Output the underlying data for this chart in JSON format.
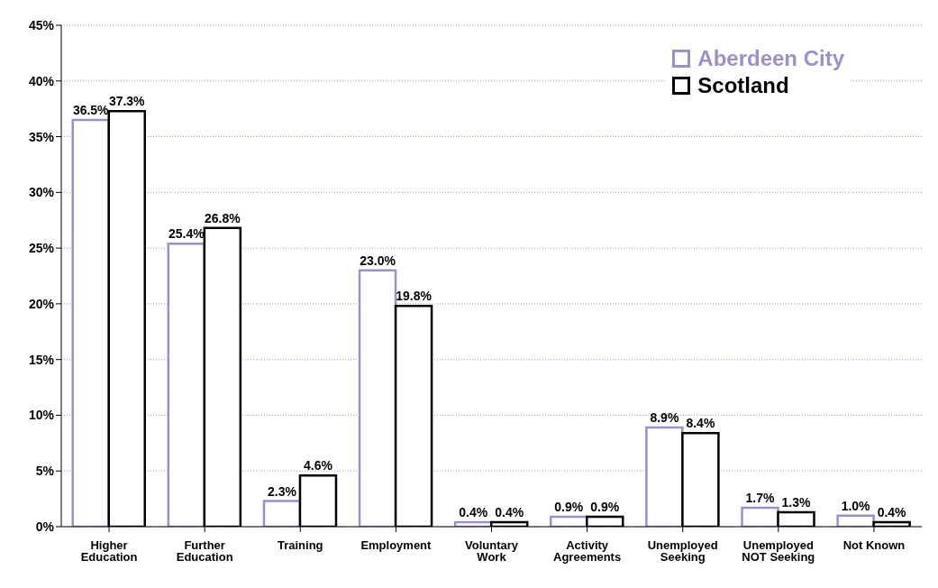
{
  "chart_data": {
    "type": "bar",
    "categories": [
      "Higher Education",
      "Further Education",
      "Training",
      "Employment",
      "Voluntary Work",
      "Activity Agreements",
      "Unemployed Seeking",
      "Unemployed NOT Seeking",
      "Not Known"
    ],
    "series": [
      {
        "name": "Aberdeen City",
        "color": "#9f8fc8",
        "values": [
          36.5,
          25.4,
          2.3,
          23.0,
          0.4,
          0.9,
          8.9,
          1.7,
          1.0
        ],
        "value_labels": [
          "36.5%",
          "25.4%",
          "2.3%",
          "23.0%",
          "0.4%",
          "0.9%",
          "8.9%",
          "1.7%",
          "1.0%"
        ]
      },
      {
        "name": "Scotland",
        "color": "#000000",
        "values": [
          37.3,
          26.8,
          4.6,
          19.8,
          0.4,
          0.9,
          8.4,
          1.3,
          0.4
        ],
        "value_labels": [
          "37.3%",
          "26.8%",
          "4.6%",
          "19.8%",
          "0.4%",
          "0.9%",
          "8.4%",
          "1.3%",
          "0.4%"
        ]
      }
    ],
    "ylim": [
      0,
      45
    ],
    "yticks": [
      {
        "value": 0,
        "label": "0%"
      },
      {
        "value": 5,
        "label": "5%"
      },
      {
        "value": 10,
        "label": "10%"
      },
      {
        "value": 15,
        "label": "15%"
      },
      {
        "value": 20,
        "label": "20%"
      },
      {
        "value": 25,
        "label": "25%"
      },
      {
        "value": 30,
        "label": "30%"
      },
      {
        "value": 35,
        "label": "35%"
      },
      {
        "value": 40,
        "label": "40%"
      },
      {
        "value": 45,
        "label": "45%"
      }
    ],
    "grid": "y",
    "legend": "top right"
  }
}
